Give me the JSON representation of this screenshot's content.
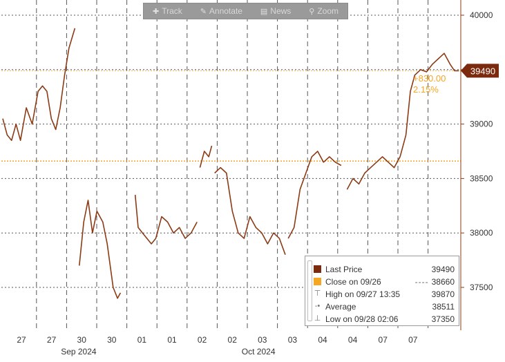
{
  "toolbar": {
    "items": [
      {
        "label": "Track",
        "icon": "crosshair-icon"
      },
      {
        "label": "Annotate",
        "icon": "pencil-icon"
      },
      {
        "label": "News",
        "icon": "news-icon"
      },
      {
        "label": "Zoom",
        "icon": "magnifier-icon"
      }
    ]
  },
  "legend": {
    "last_price": {
      "label": "Last Price",
      "value": "39490",
      "color": "#7b2a0e"
    },
    "close": {
      "label": "Close on 09/26",
      "dash": "----",
      "value": "38660",
      "color": "#f5a623"
    },
    "high": {
      "label": "High on 09/27 13:35",
      "value": "39870"
    },
    "average": {
      "label": "Average",
      "value": "38511"
    },
    "low": {
      "label": "Low on 09/28 02:06",
      "value": "37350"
    }
  },
  "chart_data": {
    "type": "line",
    "y_ticks": [
      40000,
      39500,
      39000,
      38500,
      38000,
      37500
    ],
    "ylim": [
      37100,
      40100
    ],
    "x_tick_labels": [
      "27",
      "27",
      "30",
      "30",
      "01",
      "01",
      "02",
      "02",
      "03",
      "03",
      "04",
      "04",
      "07",
      "07"
    ],
    "x_month_labels": [
      {
        "label": "Sep 2024",
        "at": 2
      },
      {
        "label": "Oct 2024",
        "at": 8
      }
    ],
    "last_price_tag": "39490",
    "change_abs": "+830.00",
    "change_pct": "2.15%",
    "reference_line": 38660,
    "grid": true,
    "series": [
      {
        "name": "Last Price",
        "color": "#8b3a14",
        "segments": [
          [
            [
              0,
              39050
            ],
            [
              0.15,
              38900
            ],
            [
              0.3,
              38850
            ],
            [
              0.45,
              39000
            ],
            [
              0.6,
              38850
            ],
            [
              0.8,
              39150
            ],
            [
              1.0,
              39000
            ],
            [
              1.2,
              39300
            ],
            [
              1.35,
              39350
            ],
            [
              1.5,
              39300
            ],
            [
              1.65,
              39050
            ],
            [
              1.8,
              38950
            ],
            [
              1.95,
              39150
            ],
            [
              2.1,
              39450
            ],
            [
              2.25,
              39700
            ],
            [
              2.45,
              39880
            ]
          ],
          [
            [
              2.6,
              37700
            ],
            [
              2.75,
              38100
            ],
            [
              2.9,
              38300
            ],
            [
              3.05,
              38000
            ],
            [
              3.2,
              38200
            ],
            [
              3.4,
              38100
            ],
            [
              3.55,
              37900
            ],
            [
              3.75,
              37500
            ],
            [
              3.9,
              37400
            ],
            [
              4.0,
              37450
            ]
          ],
          [
            [
              4.5,
              38350
            ],
            [
              4.6,
              38050
            ],
            [
              4.75,
              38000
            ],
            [
              4.9,
              37950
            ],
            [
              5.05,
              37900
            ],
            [
              5.2,
              37950
            ],
            [
              5.4,
              38150
            ],
            [
              5.6,
              38100
            ],
            [
              5.8,
              38000
            ],
            [
              6.0,
              38050
            ],
            [
              6.2,
              37950
            ],
            [
              6.4,
              38000
            ],
            [
              6.6,
              38100
            ]
          ],
          [
            [
              6.7,
              38600
            ],
            [
              6.85,
              38750
            ],
            [
              7.0,
              38700
            ],
            [
              7.1,
              38800
            ]
          ],
          [
            [
              7.2,
              38550
            ],
            [
              7.4,
              38600
            ],
            [
              7.6,
              38550
            ],
            [
              7.8,
              38200
            ],
            [
              8.0,
              38000
            ],
            [
              8.2,
              37950
            ],
            [
              8.4,
              38150
            ],
            [
              8.6,
              38050
            ],
            [
              8.8,
              38000
            ],
            [
              9.0,
              37900
            ],
            [
              9.2,
              38000
            ],
            [
              9.4,
              37950
            ],
            [
              9.6,
              37800
            ]
          ],
          [
            [
              9.7,
              37950
            ],
            [
              9.9,
              38050
            ],
            [
              10.1,
              38400
            ],
            [
              10.3,
              38550
            ],
            [
              10.5,
              38700
            ],
            [
              10.7,
              38750
            ],
            [
              10.9,
              38650
            ],
            [
              11.1,
              38700
            ],
            [
              11.3,
              38650
            ],
            [
              11.5,
              38620
            ]
          ],
          [
            [
              11.7,
              38400
            ],
            [
              11.9,
              38500
            ],
            [
              12.1,
              38450
            ],
            [
              12.3,
              38550
            ],
            [
              12.5,
              38600
            ],
            [
              12.7,
              38650
            ],
            [
              12.9,
              38700
            ],
            [
              13.1,
              38650
            ],
            [
              13.3,
              38600
            ],
            [
              13.5,
              38700
            ],
            [
              13.7,
              38900
            ],
            [
              13.85,
              39300
            ],
            [
              14.0,
              39450
            ],
            [
              14.2,
              39500
            ],
            [
              14.4,
              39480
            ],
            [
              14.6,
              39550
            ],
            [
              14.8,
              39600
            ],
            [
              15.0,
              39650
            ],
            [
              15.2,
              39550
            ],
            [
              15.35,
              39490
            ],
            [
              15.5,
              39490
            ]
          ]
        ]
      }
    ]
  }
}
